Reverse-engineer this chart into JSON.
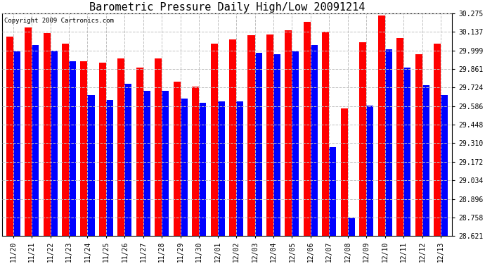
{
  "title": "Barometric Pressure Daily High/Low 20091214",
  "copyright": "Copyright 2009 Cartronics.com",
  "categories": [
    "11/20",
    "11/21",
    "11/22",
    "11/23",
    "11/24",
    "11/25",
    "11/26",
    "11/27",
    "11/28",
    "11/29",
    "11/30",
    "12/01",
    "12/02",
    "12/03",
    "12/04",
    "12/05",
    "12/06",
    "12/07",
    "12/08",
    "12/09",
    "12/10",
    "12/11",
    "12/12",
    "12/13"
  ],
  "high_values": [
    30.1,
    30.17,
    30.13,
    30.05,
    29.92,
    29.91,
    29.94,
    29.87,
    29.94,
    29.77,
    29.73,
    30.05,
    30.08,
    30.11,
    30.12,
    30.15,
    30.21,
    30.14,
    29.57,
    30.06,
    30.26,
    30.09,
    29.97,
    30.05
  ],
  "low_values": [
    29.99,
    30.04,
    30.0,
    29.92,
    29.67,
    29.63,
    29.75,
    29.7,
    29.7,
    29.64,
    29.61,
    29.62,
    29.62,
    29.98,
    29.97,
    29.99,
    30.04,
    29.28,
    28.76,
    29.59,
    30.01,
    29.87,
    29.74,
    29.67
  ],
  "high_color": "#FF0000",
  "low_color": "#0000FF",
  "bg_color": "#FFFFFF",
  "plot_bg_color": "#FFFFFF",
  "grid_color": "#C0C0C0",
  "yticks": [
    28.621,
    28.758,
    28.896,
    29.034,
    29.172,
    29.31,
    29.448,
    29.586,
    29.724,
    29.861,
    29.999,
    30.137,
    30.275
  ],
  "ytick_labels": [
    "28.621",
    "28.758",
    "28.896",
    "29.034",
    "29.172",
    "29.310",
    "29.448",
    "29.586",
    "29.724",
    "29.861",
    "29.999",
    "30.137",
    "30.275"
  ],
  "ymin": 28.621,
  "ymax": 30.275,
  "title_fontsize": 11,
  "tick_fontsize": 7,
  "copyright_fontsize": 6.5,
  "bar_width": 0.38,
  "figwidth": 6.9,
  "figheight": 3.75
}
